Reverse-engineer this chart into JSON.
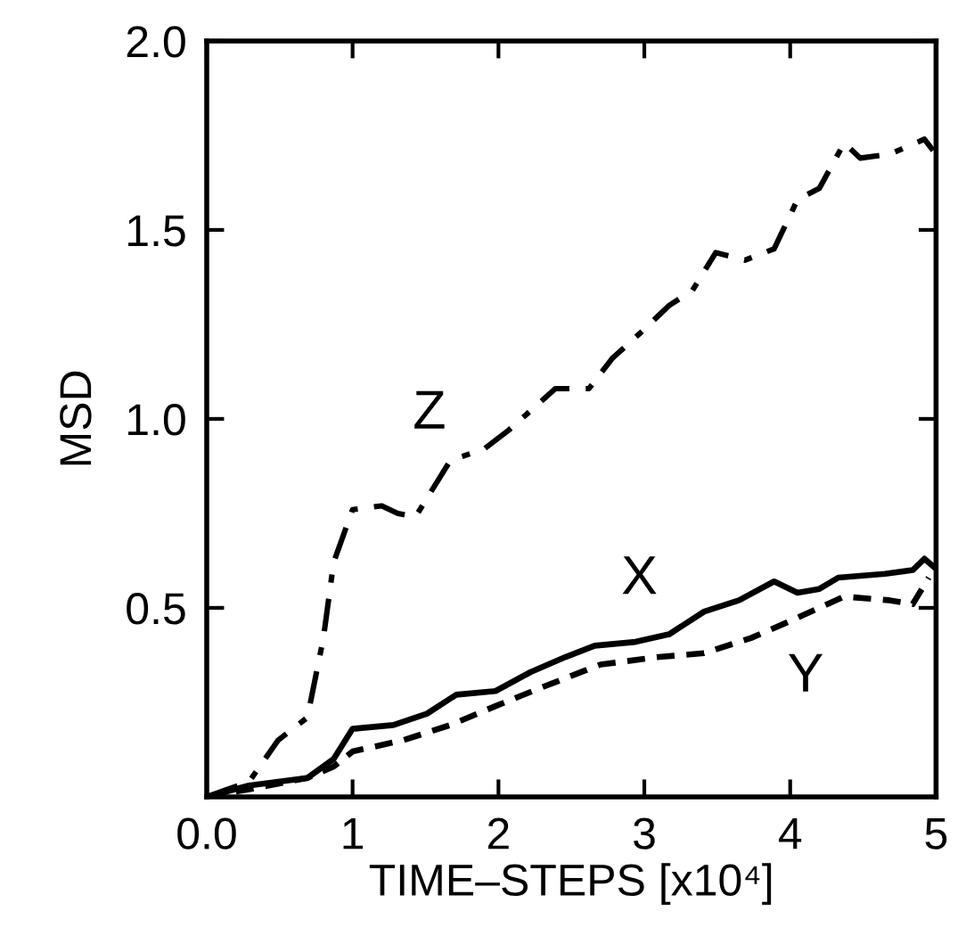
{
  "chart_data": {
    "type": "line",
    "xlabel": "TIME–STEPS [x10⁴]",
    "ylabel": "MSD",
    "xlim": [
      0,
      5
    ],
    "ylim": [
      0,
      2
    ],
    "xticks": [
      {
        "value": 0,
        "label": "0.0"
      },
      1,
      2,
      3,
      4,
      5
    ],
    "yticks": [
      {
        "value": 0.5,
        "label": "0.5"
      },
      {
        "value": 1.0,
        "label": "1.0"
      },
      {
        "value": 1.5,
        "label": "1.5"
      },
      {
        "value": 2.0,
        "label": "2.0"
      }
    ],
    "grid": false,
    "legend": false,
    "marker": "none",
    "series": [
      {
        "name": "Z",
        "color": "#000000",
        "line_style": "dashdot",
        "x": [
          0,
          0.29,
          0.49,
          0.69,
          0.8,
          0.87,
          1.0,
          1.2,
          1.31,
          1.43,
          1.51,
          1.67,
          1.9,
          2.07,
          2.39,
          2.62,
          2.78,
          2.98,
          3.17,
          3.33,
          3.49,
          3.69,
          3.89,
          4.05,
          4.2,
          4.37,
          4.48,
          4.68,
          4.92,
          4.98
        ],
        "values": [
          0,
          0.04,
          0.15,
          0.21,
          0.42,
          0.62,
          0.76,
          0.77,
          0.75,
          0.74,
          0.79,
          0.89,
          0.92,
          0.97,
          1.08,
          1.08,
          1.16,
          1.23,
          1.3,
          1.34,
          1.44,
          1.42,
          1.45,
          1.58,
          1.61,
          1.73,
          1.69,
          1.7,
          1.74,
          1.71
        ]
      },
      {
        "name": "X",
        "color": "#000000",
        "line_style": "solid",
        "x": [
          0,
          0.29,
          0.69,
          0.87,
          1.0,
          1.28,
          1.51,
          1.71,
          1.98,
          2.22,
          2.46,
          2.66,
          2.94,
          3.17,
          3.41,
          3.65,
          3.89,
          4.05,
          4.2,
          4.33,
          4.65,
          4.84,
          4.92,
          4.98
        ],
        "values": [
          0,
          0.03,
          0.05,
          0.1,
          0.18,
          0.19,
          0.22,
          0.27,
          0.28,
          0.33,
          0.37,
          0.4,
          0.41,
          0.43,
          0.49,
          0.52,
          0.57,
          0.54,
          0.55,
          0.58,
          0.59,
          0.6,
          0.63,
          0.61
        ]
      },
      {
        "name": "Y",
        "color": "#000000",
        "line_style": "dashed",
        "x": [
          0,
          0.29,
          0.69,
          0.87,
          1.0,
          1.35,
          1.67,
          1.98,
          2.3,
          2.7,
          3.1,
          3.41,
          3.73,
          3.97,
          4.37,
          4.68,
          4.84,
          4.95
        ],
        "values": [
          0,
          0.02,
          0.05,
          0.08,
          0.12,
          0.15,
          0.19,
          0.24,
          0.29,
          0.35,
          0.37,
          0.38,
          0.42,
          0.46,
          0.53,
          0.52,
          0.51,
          0.58
        ]
      }
    ]
  }
}
